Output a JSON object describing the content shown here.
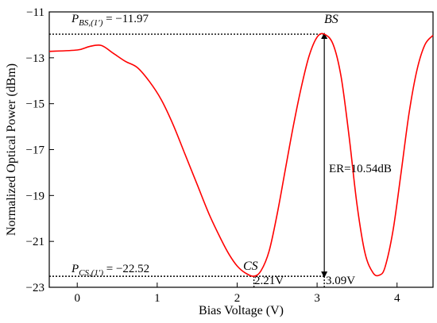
{
  "chart_data": {
    "type": "line",
    "xlabel": "Bias Voltage (V)",
    "ylabel": "Normalized Optical Power (dBm)",
    "xlim": [
      -0.35,
      4.45
    ],
    "ylim": [
      -23,
      -11
    ],
    "xticks": [
      0,
      1,
      2,
      3,
      4
    ],
    "yticks": [
      -11,
      -13,
      -15,
      -17,
      -19,
      -21,
      -23
    ],
    "grid": false,
    "legend": "none",
    "series": [
      {
        "color": "#ff0000",
        "x": [
          -0.35,
          0.0,
          0.15,
          0.3,
          0.45,
          0.6,
          0.75,
          0.9,
          1.05,
          1.2,
          1.35,
          1.5,
          1.65,
          1.8,
          1.9,
          2.0,
          2.1,
          2.21,
          2.3,
          2.4,
          2.5,
          2.6,
          2.7,
          2.8,
          2.9,
          3.0,
          3.09,
          3.2,
          3.3,
          3.4,
          3.5,
          3.6,
          3.7,
          3.78,
          3.85,
          3.95,
          4.05,
          4.15,
          4.25,
          4.35,
          4.45
        ],
        "y": [
          -12.72,
          -12.66,
          -12.51,
          -12.46,
          -12.8,
          -13.15,
          -13.42,
          -14.02,
          -14.82,
          -15.92,
          -17.22,
          -18.52,
          -19.82,
          -20.92,
          -21.57,
          -22.07,
          -22.37,
          -22.52,
          -22.27,
          -21.42,
          -19.82,
          -17.92,
          -16.02,
          -14.32,
          -12.92,
          -12.1,
          -11.97,
          -12.41,
          -13.82,
          -16.42,
          -19.42,
          -21.52,
          -22.37,
          -22.47,
          -22.12,
          -20.52,
          -18.02,
          -15.42,
          -13.52,
          -12.42,
          -12.02
        ]
      }
    ],
    "annotations": {
      "bs_value": "P_{BS,(1′)} = −11.97",
      "bs_point": "BS",
      "cs_value": "P_{CS,(1′)} = −22.52",
      "cs_point": "CS",
      "cs_voltage": "2.21V",
      "bs_voltage": "3.09V",
      "extinction_ratio": "ER=10.54dB"
    },
    "markers": {
      "bs": {
        "x": 3.09,
        "y": -11.97
      },
      "cs": {
        "x": 2.21,
        "y": -22.52
      }
    }
  }
}
